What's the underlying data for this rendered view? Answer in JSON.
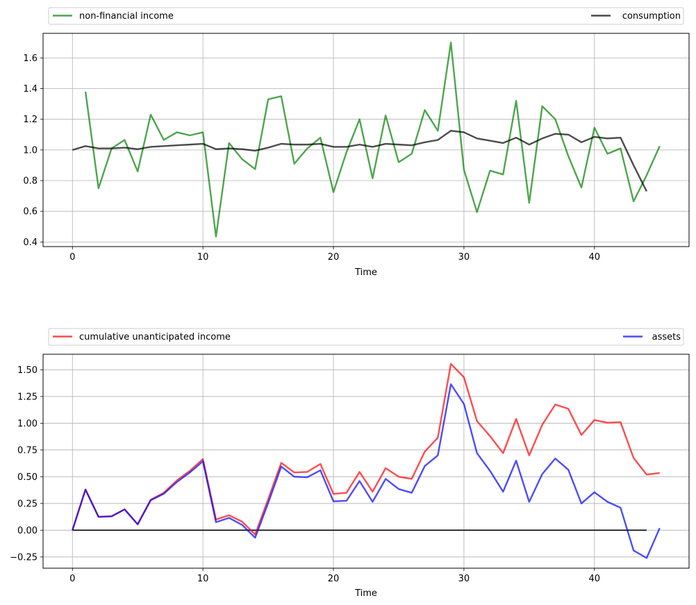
{
  "chart_data": [
    {
      "type": "line",
      "xlabel": "Time",
      "ylabel": "",
      "xlim": [
        -2.25,
        47.25
      ],
      "ylim": [
        0.37,
        1.76
      ],
      "grid": true,
      "xticks": [
        0,
        10,
        20,
        30,
        40
      ],
      "yticks": [
        0.4,
        0.6,
        0.8,
        1.0,
        1.2,
        1.4,
        1.6
      ],
      "ytick_labels": [
        "0.4",
        "0.6",
        "0.8",
        "1.0",
        "1.2",
        "1.4",
        "1.6"
      ],
      "legend_position": "above plot, spanning full width",
      "series": [
        {
          "name": "non-financial income",
          "color": "#008000",
          "x_start": 1,
          "values": [
            1.38,
            0.75,
            1.01,
            1.065,
            0.86,
            1.23,
            1.065,
            1.115,
            1.095,
            1.115,
            0.435,
            1.045,
            0.94,
            0.875,
            1.33,
            1.35,
            0.91,
            1.01,
            1.08,
            0.725,
            0.985,
            1.2,
            0.815,
            1.225,
            0.92,
            0.975,
            1.26,
            1.125,
            1.7,
            0.87,
            0.595,
            0.865,
            0.84,
            1.32,
            0.655,
            1.285,
            1.2,
            0.96,
            0.755,
            1.145,
            0.975,
            1.01,
            0.665,
            0.835,
            1.025
          ]
        },
        {
          "name": "consumption",
          "color": "#000000",
          "x_start": 0,
          "values": [
            1.0,
            1.025,
            1.01,
            1.01,
            1.015,
            1.005,
            1.02,
            1.025,
            1.03,
            1.035,
            1.04,
            1.005,
            1.01,
            1.005,
            0.995,
            1.015,
            1.04,
            1.035,
            1.035,
            1.04,
            1.02,
            1.02,
            1.035,
            1.02,
            1.04,
            1.035,
            1.03,
            1.05,
            1.065,
            1.125,
            1.115,
            1.075,
            1.06,
            1.045,
            1.08,
            1.035,
            1.075,
            1.105,
            1.1,
            1.05,
            1.085,
            1.075,
            1.08,
            0.9,
            0.73
          ]
        }
      ]
    },
    {
      "type": "line",
      "xlabel": "Time",
      "ylabel": "",
      "xlim": [
        -2.25,
        47.25
      ],
      "ylim": [
        -0.355,
        1.645
      ],
      "grid": true,
      "xticks": [
        0,
        10,
        20,
        30,
        40
      ],
      "yticks": [
        -0.25,
        0.0,
        0.25,
        0.5,
        0.75,
        1.0,
        1.25,
        1.5
      ],
      "ytick_labels": [
        "−0.25",
        "0.00",
        "0.25",
        "0.50",
        "0.75",
        "1.00",
        "1.25",
        "1.50"
      ],
      "legend_position": "above plot, spanning full width",
      "series": [
        {
          "name": "cumulative unanticipated income",
          "color": "#ff0000",
          "x_start": 0,
          "values": [
            0.0,
            0.38,
            0.125,
            0.13,
            0.195,
            0.055,
            0.285,
            0.35,
            0.465,
            0.555,
            0.665,
            0.1,
            0.14,
            0.08,
            -0.04,
            0.29,
            0.63,
            0.54,
            0.545,
            0.62,
            0.34,
            0.35,
            0.545,
            0.36,
            0.58,
            0.5,
            0.48,
            0.735,
            0.865,
            1.555,
            1.43,
            1.02,
            0.88,
            0.72,
            1.04,
            0.7,
            0.985,
            1.175,
            1.135,
            0.89,
            1.03,
            1.005,
            1.01,
            0.675,
            0.52,
            0.535
          ]
        },
        {
          "name": "assets",
          "color": "#0000ff",
          "x_start": 0,
          "values": [
            0.0,
            0.38,
            0.125,
            0.13,
            0.195,
            0.055,
            0.28,
            0.34,
            0.45,
            0.54,
            0.645,
            0.075,
            0.115,
            0.05,
            -0.07,
            0.255,
            0.595,
            0.5,
            0.495,
            0.56,
            0.27,
            0.275,
            0.46,
            0.265,
            0.48,
            0.385,
            0.35,
            0.6,
            0.7,
            1.365,
            1.18,
            0.72,
            0.555,
            0.36,
            0.65,
            0.265,
            0.525,
            0.67,
            0.565,
            0.25,
            0.355,
            0.265,
            0.21,
            -0.19,
            -0.26,
            0.02
          ]
        }
      ],
      "reference_line": {
        "y": 0.0,
        "x_from": 0,
        "x_to": 44,
        "color": "#000000"
      }
    }
  ]
}
